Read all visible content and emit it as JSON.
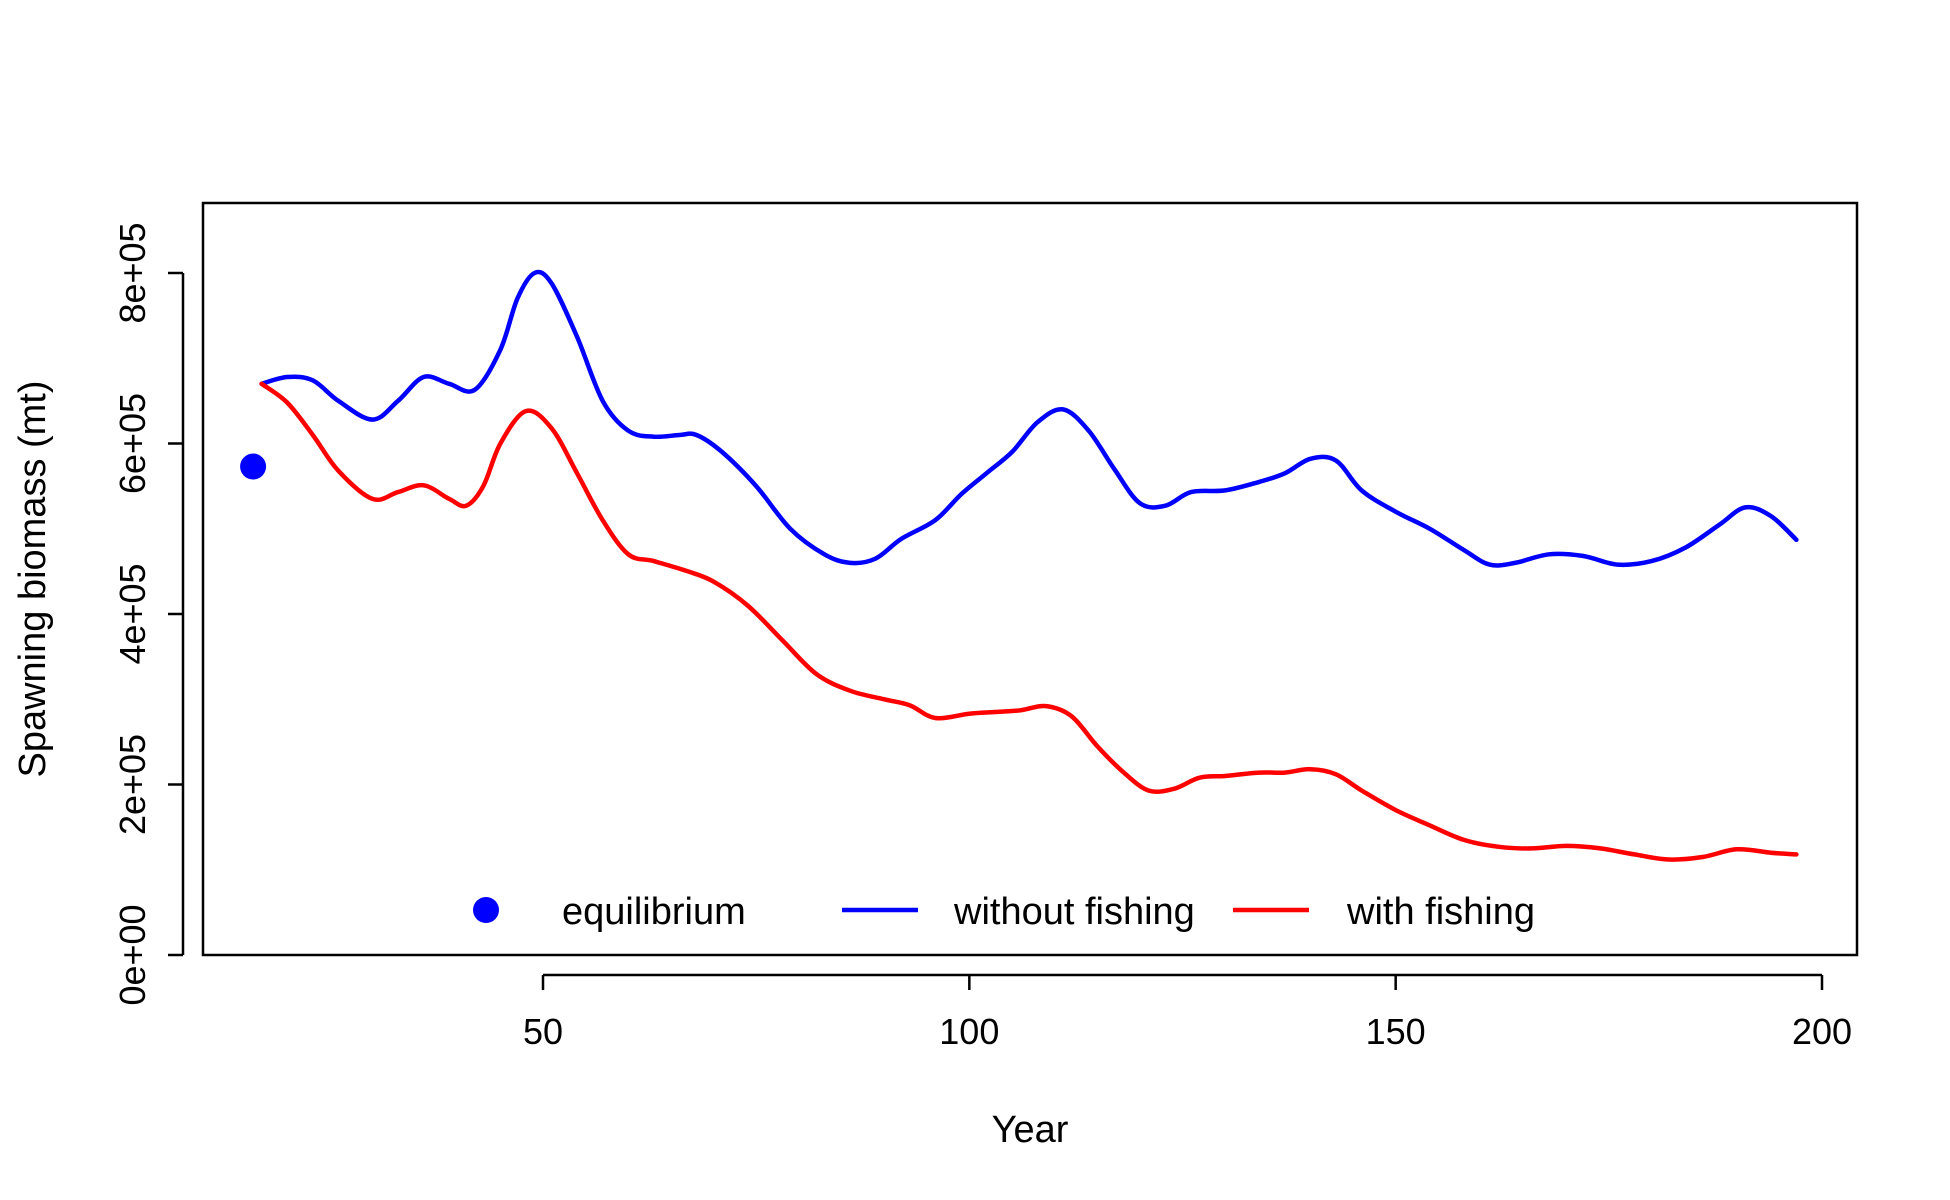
{
  "chart_data": {
    "type": "line",
    "title": "",
    "xlabel": "Year",
    "ylabel": "Spawning biomass (mt)",
    "xlim": [
      10,
      200
    ],
    "ylim": [
      0,
      880000
    ],
    "x_ticks": [
      50,
      100,
      150,
      200
    ],
    "x_tick_labels": [
      "50",
      "100",
      "150",
      "200"
    ],
    "y_ticks": [
      0,
      200000,
      400000,
      600000,
      800000
    ],
    "y_tick_labels": [
      "0e+00",
      "2e+05",
      "4e+05",
      "6e+05",
      "8e+05"
    ],
    "grid": false,
    "legend_position": "bottom",
    "legend": [
      {
        "label": "equilibrium",
        "kind": "point",
        "color": "#0000ff"
      },
      {
        "label": "without fishing",
        "kind": "line",
        "color": "#0000ff"
      },
      {
        "label": "with fishing",
        "kind": "line",
        "color": "#ff0000"
      }
    ],
    "points": [
      {
        "name": "equilibrium",
        "x": 16,
        "y": 573000,
        "color": "#0000ff"
      }
    ],
    "series": [
      {
        "name": "without fishing",
        "color": "#0000ff",
        "x": [
          17,
          20,
          23,
          26,
          30,
          33,
          36,
          39,
          42,
          45,
          47,
          49,
          51,
          54,
          57,
          60,
          63,
          66,
          68,
          71,
          75,
          79,
          83,
          86,
          89,
          92,
          96,
          99,
          102,
          105,
          108,
          111,
          114,
          117,
          120,
          123,
          126,
          130,
          134,
          137,
          140,
          143,
          146,
          150,
          154,
          158,
          161,
          164,
          168,
          172,
          176,
          180,
          184,
          188,
          191,
          194,
          197
        ],
        "y": [
          670000,
          678000,
          674000,
          650000,
          628000,
          650000,
          678000,
          670000,
          663000,
          710000,
          770000,
          800000,
          788000,
          725000,
          650000,
          615000,
          608000,
          610000,
          610000,
          590000,
          550000,
          500000,
          470000,
          460000,
          465000,
          488000,
          510000,
          540000,
          565000,
          590000,
          625000,
          640000,
          615000,
          570000,
          530000,
          527000,
          543000,
          545000,
          555000,
          565000,
          582000,
          580000,
          545000,
          520000,
          500000,
          475000,
          458000,
          460000,
          470000,
          468000,
          458000,
          462000,
          478000,
          505000,
          525000,
          515000,
          487000
        ]
      },
      {
        "name": "with fishing",
        "color": "#ff0000",
        "x": [
          17,
          20,
          23,
          26,
          30,
          33,
          36,
          39,
          41,
          43,
          45,
          48,
          51,
          54,
          57,
          60,
          63,
          67,
          70,
          74,
          78,
          82,
          86,
          90,
          93,
          96,
          100,
          103,
          106,
          109,
          112,
          115,
          118,
          121,
          124,
          127,
          130,
          134,
          137,
          140,
          143,
          146,
          150,
          154,
          158,
          162,
          166,
          170,
          174,
          178,
          182,
          186,
          190,
          194,
          197
        ],
        "y": [
          670000,
          648000,
          610000,
          568000,
          535000,
          543000,
          551000,
          535000,
          527000,
          550000,
          600000,
          638000,
          618000,
          565000,
          510000,
          470000,
          462000,
          450000,
          438000,
          410000,
          370000,
          330000,
          310000,
          300000,
          293000,
          278000,
          283000,
          285000,
          287000,
          292000,
          280000,
          245000,
          215000,
          193000,
          195000,
          208000,
          210000,
          214000,
          214000,
          218000,
          212000,
          193000,
          170000,
          152000,
          135000,
          127000,
          125000,
          128000,
          125000,
          118000,
          112000,
          115000,
          124000,
          120000,
          118000
        ]
      }
    ]
  }
}
